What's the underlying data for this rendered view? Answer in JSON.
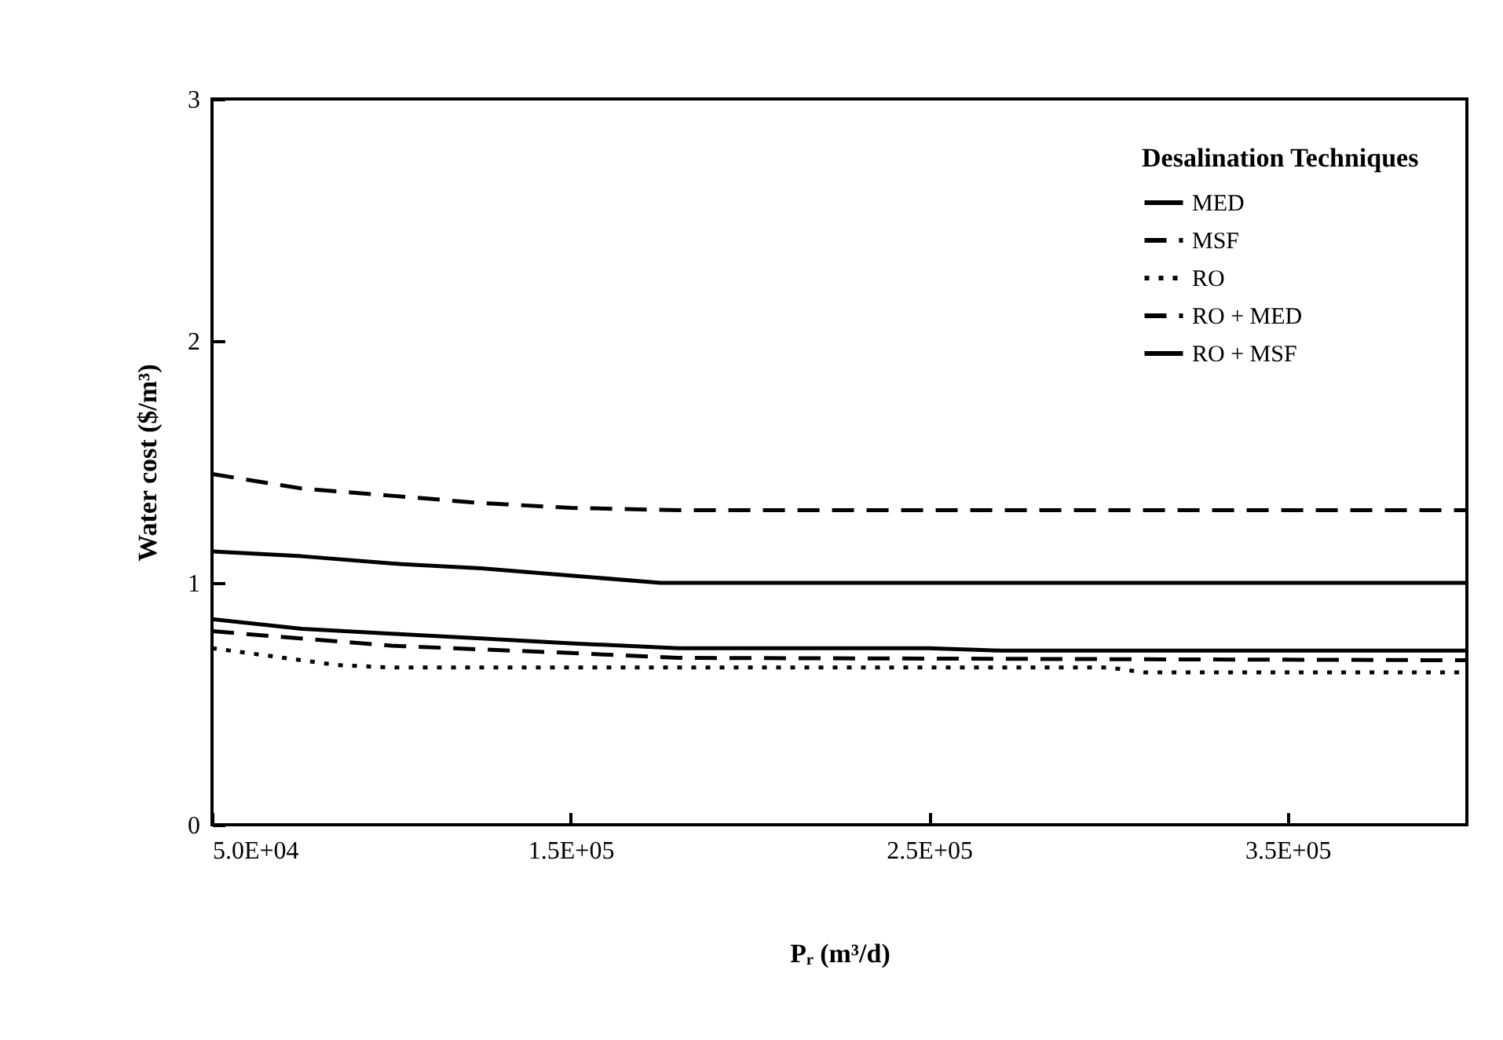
{
  "chart_data": {
    "type": "line",
    "xlabel": "Pᵣ (m³/d)",
    "ylabel": "Water cost ($/m³)",
    "legend_title": "Desalination Techniques",
    "legend": "top right",
    "grid": false,
    "marker": "none",
    "xlim": [
      50000,
      400000
    ],
    "ylim": [
      0,
      3
    ],
    "xticks": [
      {
        "value": 50000,
        "label": "5.0E+04"
      },
      {
        "value": 150000,
        "label": "1.5E+05"
      },
      {
        "value": 250000,
        "label": "2.5E+05"
      },
      {
        "value": 350000,
        "label": "3.5E+05"
      }
    ],
    "yticks": [
      0,
      1,
      2,
      3
    ],
    "series": [
      {
        "name": "MED",
        "color": "#000000",
        "line_style": "solid",
        "x": [
          50000,
          75000,
          100000,
          125000,
          150000,
          180000,
          250000,
          270000,
          400000
        ],
        "values": [
          0.85,
          0.81,
          0.79,
          0.77,
          0.75,
          0.73,
          0.73,
          0.72,
          0.72
        ]
      },
      {
        "name": "MSF",
        "color": "#000000",
        "line_style": "dashed",
        "x": [
          50000,
          75000,
          100000,
          125000,
          150000,
          180000,
          400000
        ],
        "values": [
          1.45,
          1.39,
          1.36,
          1.33,
          1.31,
          1.3,
          1.3
        ]
      },
      {
        "name": "RO",
        "color": "#000000",
        "line_style": "dotted",
        "x": [
          50000,
          75000,
          85000,
          100000,
          300000,
          310000,
          400000
        ],
        "values": [
          0.73,
          0.68,
          0.66,
          0.65,
          0.65,
          0.63,
          0.63
        ]
      },
      {
        "name": "RO + MED",
        "color": "#000000",
        "line_style": "dashed",
        "x": [
          50000,
          100000,
          150000,
          180000,
          400000
        ],
        "values": [
          0.8,
          0.74,
          0.71,
          0.69,
          0.68
        ]
      },
      {
        "name": "RO + MSF",
        "color": "#000000",
        "line_style": "solid",
        "x": [
          50000,
          75000,
          100000,
          125000,
          150000,
          175000,
          400000
        ],
        "values": [
          1.13,
          1.11,
          1.08,
          1.06,
          1.03,
          1.0,
          1.0
        ]
      }
    ]
  }
}
